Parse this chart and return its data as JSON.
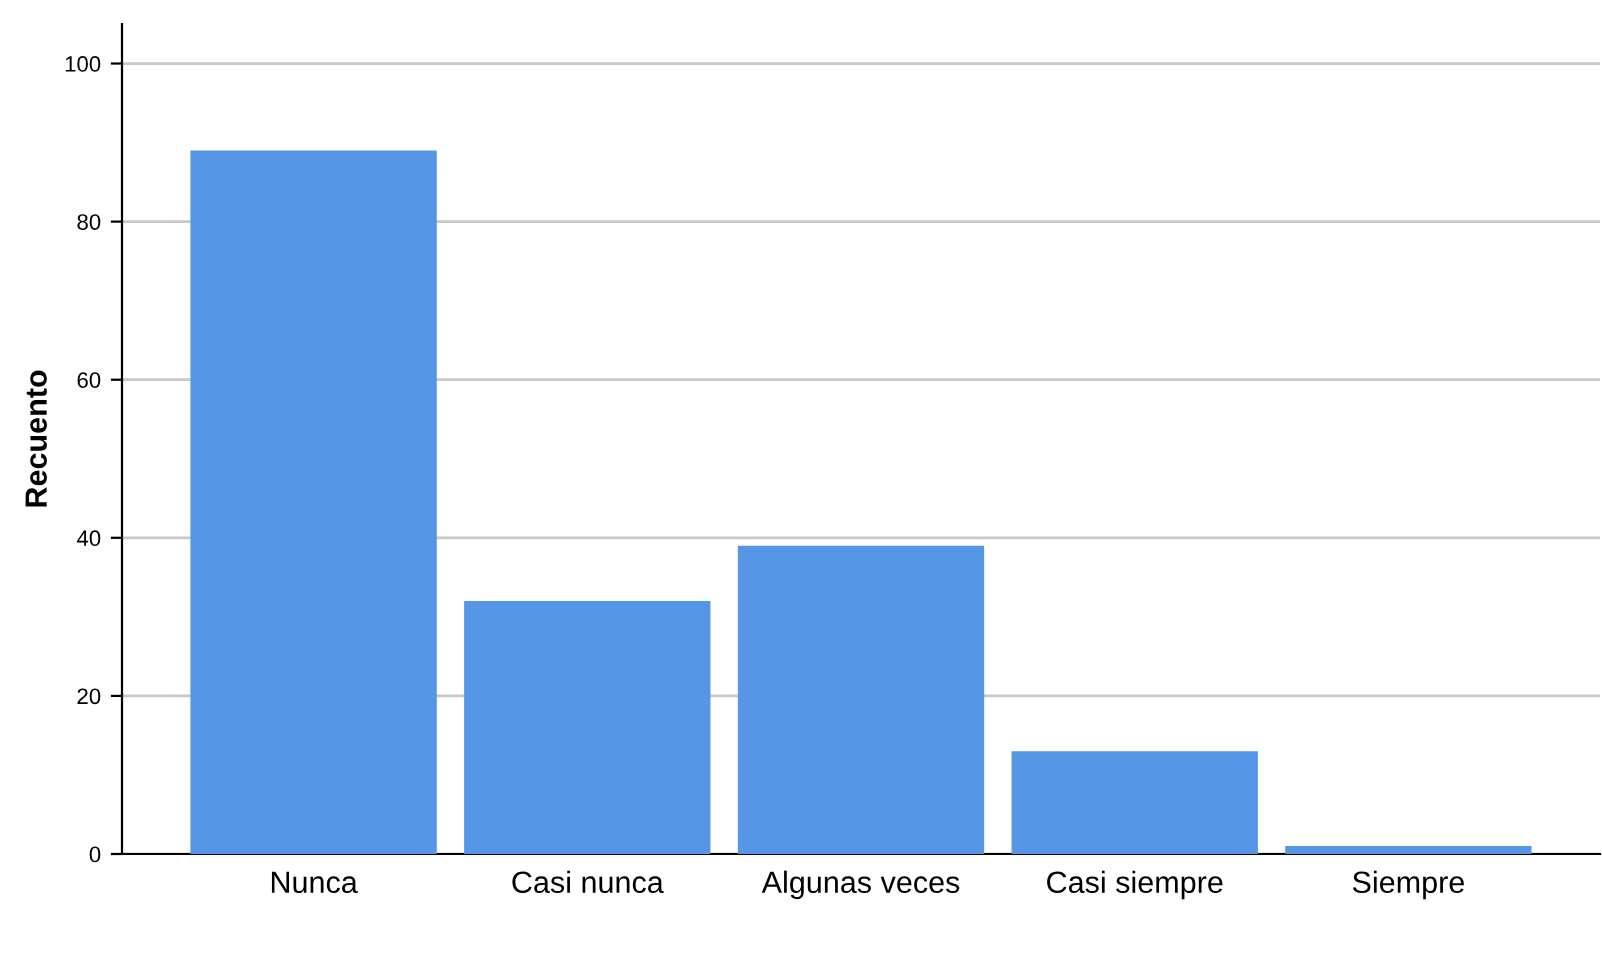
{
  "chart_data": {
    "type": "bar",
    "ylabel": "Recuento",
    "categories": [
      "Nunca",
      "Casi nunca",
      "Algunas veces",
      "Casi siempre",
      "Siempre"
    ],
    "values": [
      89,
      32,
      39,
      13,
      1
    ],
    "color": "#5596e6",
    "ylim": [
      0,
      105
    ],
    "yticks": [
      0,
      20,
      40,
      60,
      80,
      100
    ],
    "grid": "y"
  }
}
